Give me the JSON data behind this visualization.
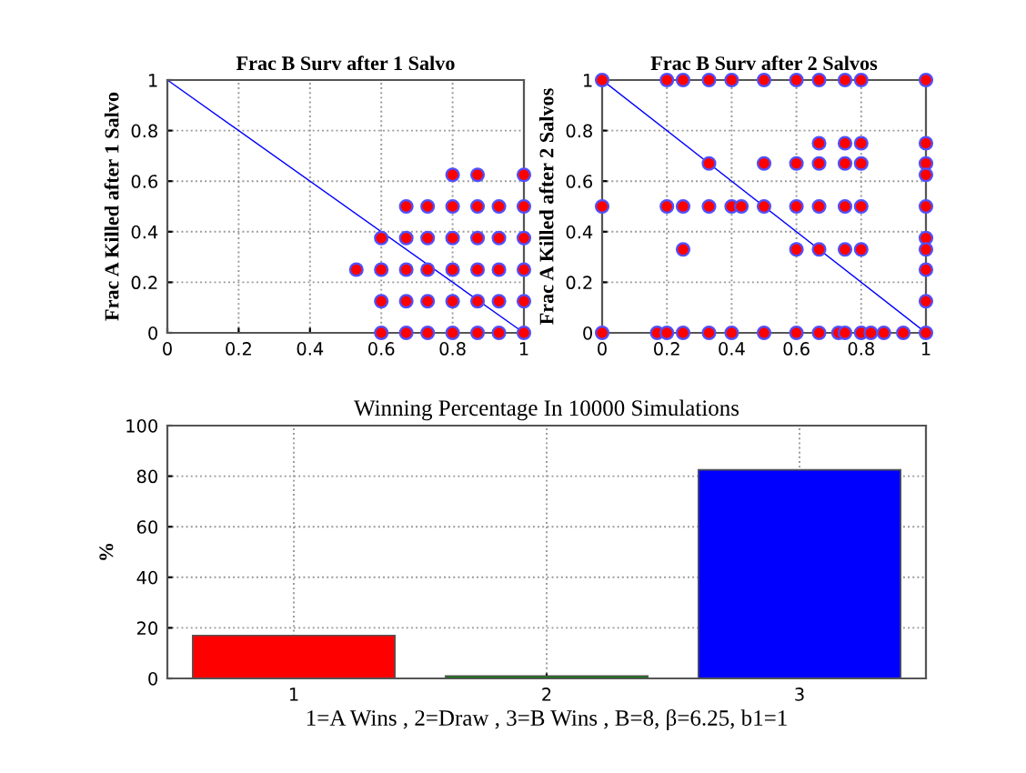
{
  "chart_data": [
    {
      "type": "scatter",
      "title": "Frac B Surv after 1 Salvo",
      "ylabel": "Frac A Killed after 1 Salvo",
      "xlim": [
        0,
        1
      ],
      "ylim": [
        0,
        1
      ],
      "xticks": [
        0,
        0.2,
        0.4,
        0.6,
        0.8,
        1
      ],
      "yticks": [
        0,
        0.2,
        0.4,
        0.6,
        0.8,
        1
      ],
      "grid": true,
      "marker": "circle",
      "series": [
        {
          "color": "#ff0000",
          "x": [
            0.6,
            0.67,
            0.73,
            0.8,
            0.87,
            0.93,
            1,
            0.6,
            0.67,
            0.73,
            0.8,
            0.87,
            0.93,
            1,
            0.53,
            0.6,
            0.67,
            0.73,
            0.8,
            0.87,
            0.93,
            1,
            0.6,
            0.67,
            0.73,
            0.8,
            0.87,
            0.93,
            1,
            0.67,
            0.73,
            0.8,
            0.87,
            0.93,
            1,
            0.8,
            0.87,
            1
          ],
          "values": [
            0,
            0,
            0,
            0,
            0,
            0,
            0,
            0.125,
            0.125,
            0.125,
            0.125,
            0.125,
            0.125,
            0.125,
            0.25,
            0.25,
            0.25,
            0.25,
            0.25,
            0.25,
            0.25,
            0.25,
            0.375,
            0.375,
            0.375,
            0.375,
            0.375,
            0.375,
            0.375,
            0.5,
            0.5,
            0.5,
            0.5,
            0.5,
            0.5,
            0.625,
            0.625,
            0.625
          ]
        },
        {
          "type": "line",
          "marker": "none",
          "color": "#0000ff",
          "x": [
            0,
            1
          ],
          "values": [
            1,
            0
          ]
        }
      ]
    },
    {
      "type": "scatter",
      "title": "Frac B Surv after 2 Salvos",
      "ylabel": "Frac A Killed after 2 Salvos",
      "xlim": [
        0,
        1
      ],
      "ylim": [
        0,
        1
      ],
      "xticks": [
        0,
        0.2,
        0.4,
        0.6,
        0.8,
        1
      ],
      "yticks": [
        0,
        0.2,
        0.4,
        0.6,
        0.8,
        1
      ],
      "grid": true,
      "marker": "circle",
      "series": [
        {
          "color": "#ff0000",
          "x": [
            0,
            0.2,
            0.25,
            0.33,
            0.4,
            0.5,
            0.6,
            0.67,
            0.75,
            0.8,
            1,
            0.67,
            0.75,
            0.8,
            1,
            0.33,
            0.5,
            0.6,
            0.67,
            0.75,
            0.8,
            1,
            1,
            0,
            0.2,
            0.25,
            0.33,
            0.4,
            0.43,
            0.5,
            0.6,
            0.67,
            0.75,
            0.8,
            1,
            1,
            0.25,
            0.6,
            0.67,
            0.75,
            0.8,
            1,
            1,
            1,
            0,
            0.17,
            0.2,
            0.25,
            0.33,
            0.4,
            0.5,
            0.6,
            0.67,
            0.73,
            0.75,
            0.8,
            0.83,
            0.87,
            0.93,
            1
          ],
          "values": [
            1,
            1,
            1,
            1,
            1,
            1,
            1,
            1,
            1,
            1,
            1,
            0.75,
            0.75,
            0.75,
            0.75,
            0.67,
            0.67,
            0.67,
            0.67,
            0.67,
            0.67,
            0.67,
            0.625,
            0.5,
            0.5,
            0.5,
            0.5,
            0.5,
            0.5,
            0.5,
            0.5,
            0.5,
            0.5,
            0.5,
            0.5,
            0.375,
            0.33,
            0.33,
            0.33,
            0.33,
            0.33,
            0.33,
            0.25,
            0.125,
            0,
            0,
            0,
            0,
            0,
            0,
            0,
            0,
            0,
            0,
            0,
            0,
            0,
            0,
            0,
            0
          ]
        },
        {
          "type": "line",
          "marker": "none",
          "color": "#0000ff",
          "x": [
            0,
            1
          ],
          "values": [
            1,
            0
          ]
        }
      ]
    },
    {
      "type": "bar",
      "title": "Winning Percentage In 10000 Simulations",
      "xlabel": "1=A Wins , 2=Draw , 3=B Wins , B=8, β=6.25, b1=1",
      "ylabel": "%",
      "categories": [
        "1",
        "2",
        "3"
      ],
      "values": [
        17,
        1,
        82.5
      ],
      "colors": [
        "#ff0000",
        "#008000",
        "#0000ff"
      ],
      "ylim": [
        0,
        100
      ],
      "yticks": [
        0,
        20,
        40,
        60,
        80,
        100
      ],
      "grid": true
    }
  ]
}
